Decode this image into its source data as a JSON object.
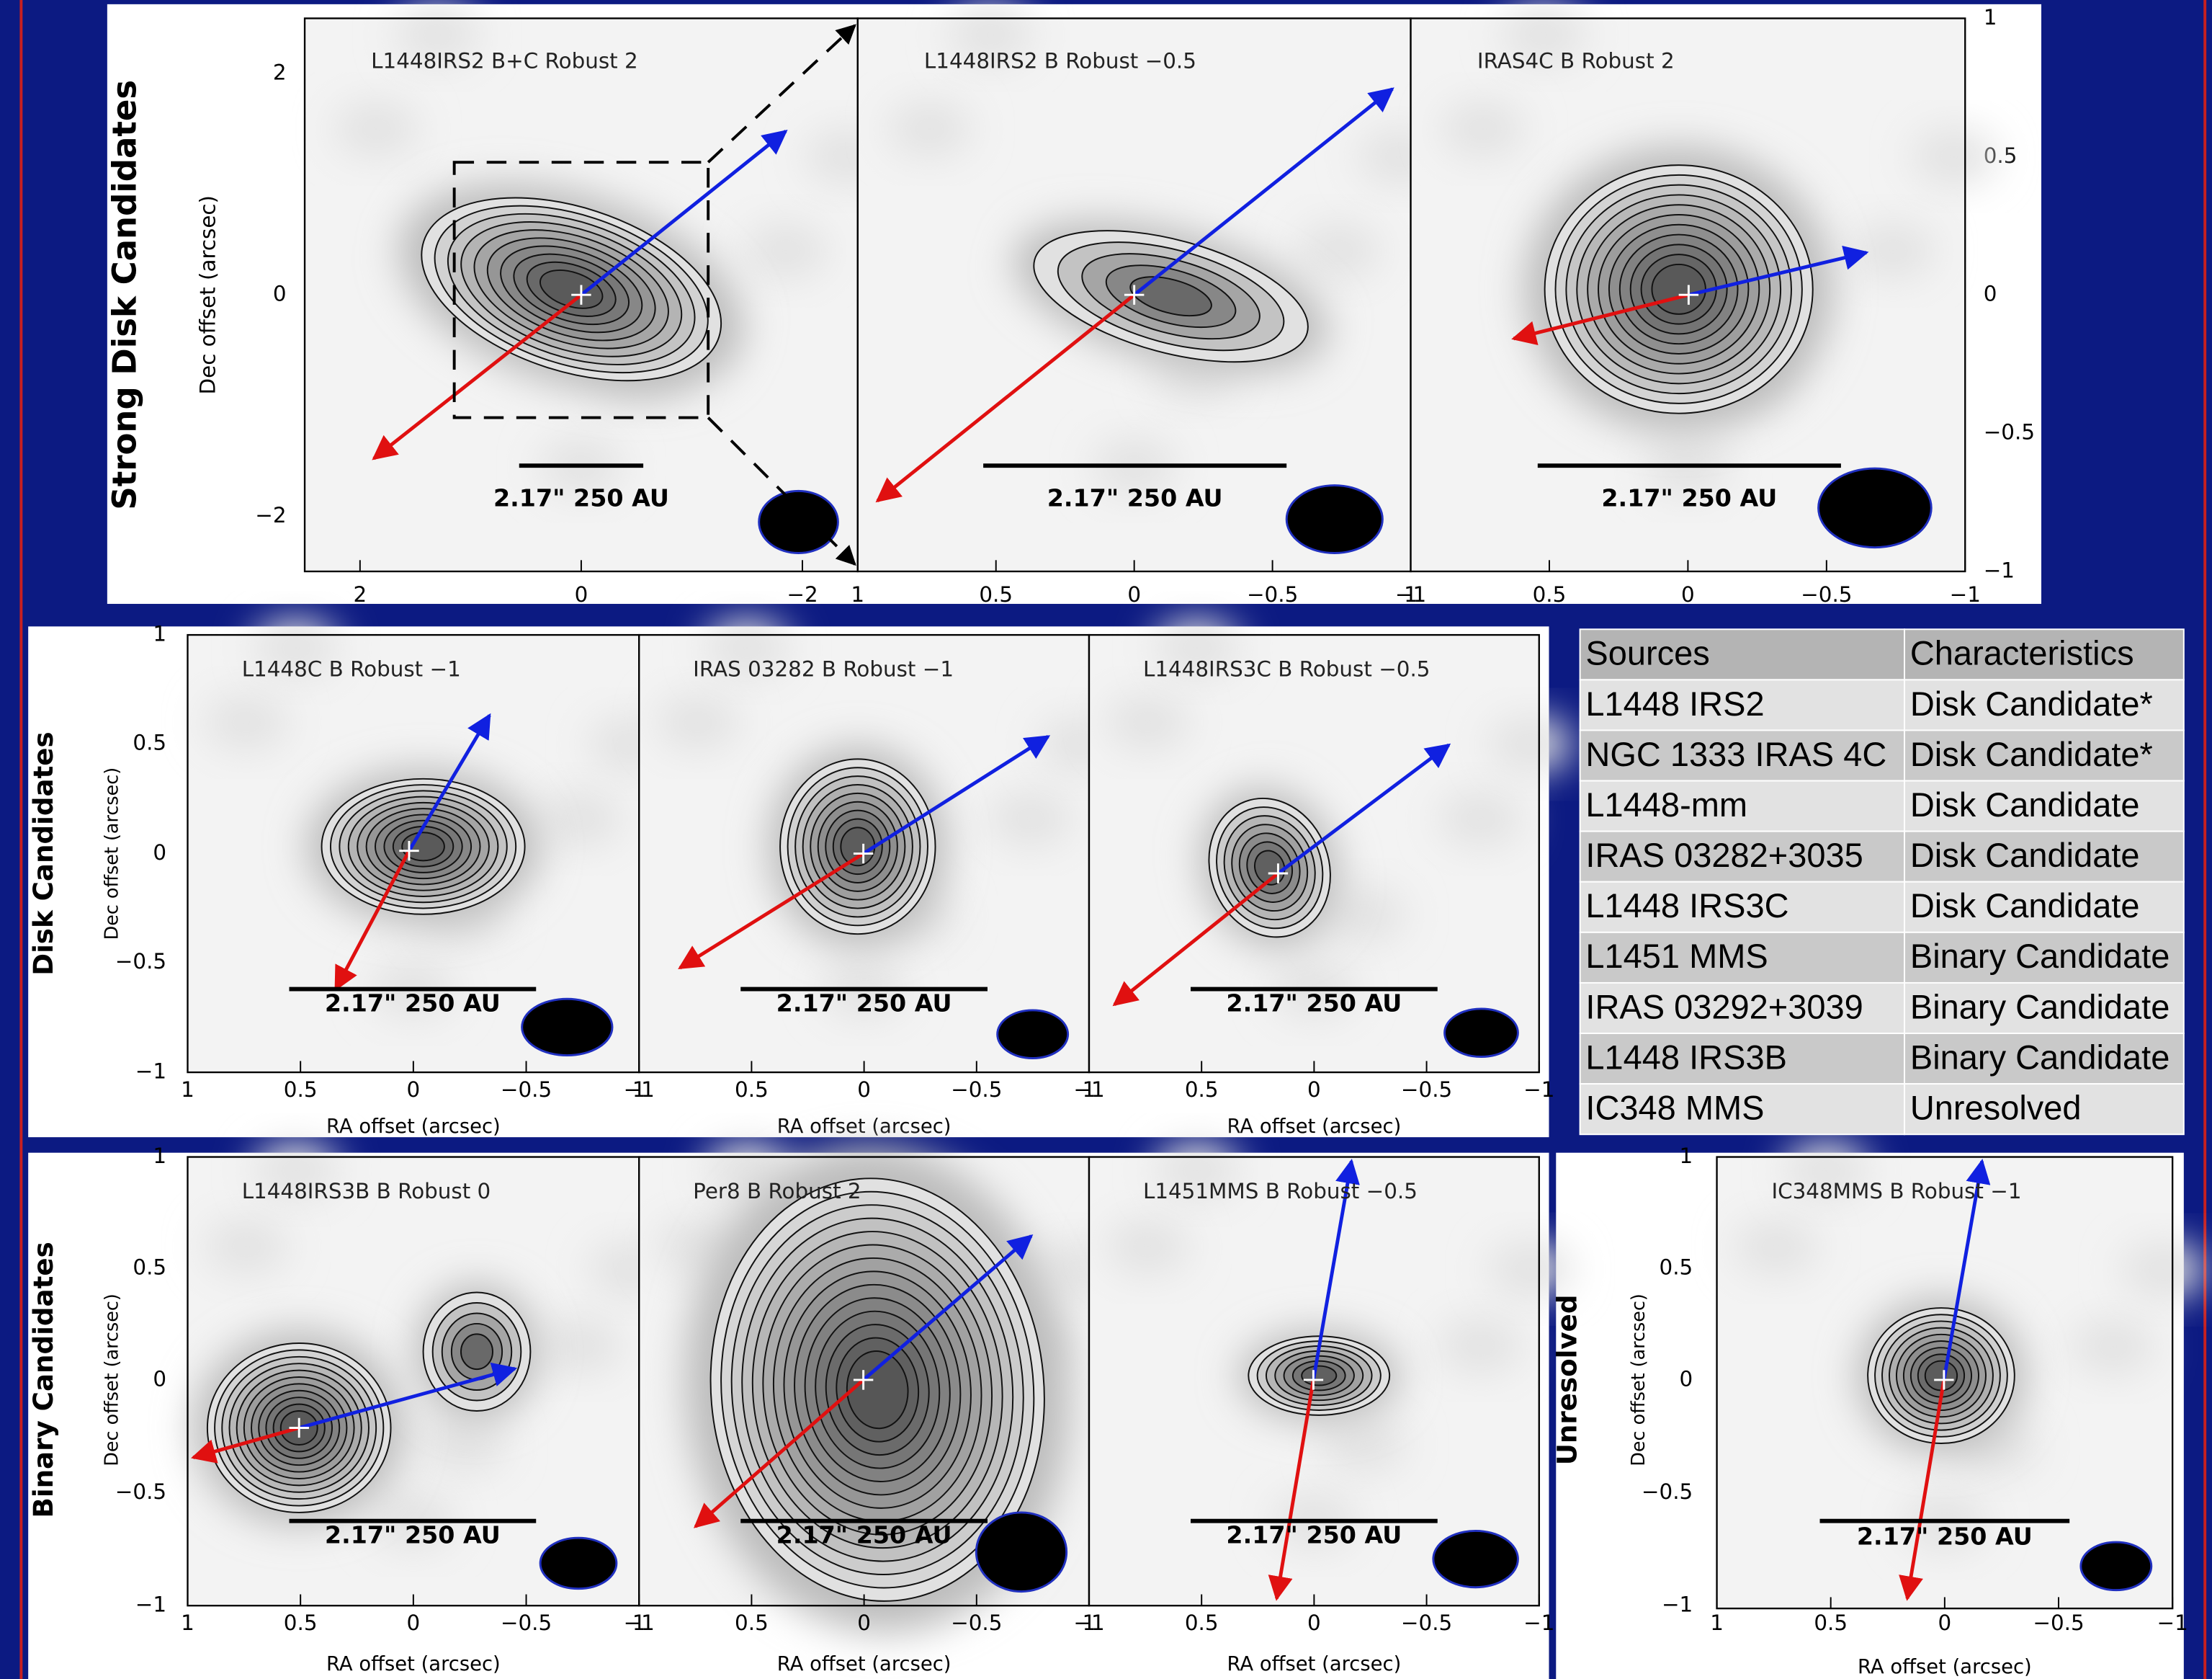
{
  "rows": [
    {
      "label": "Strong Disk Candidates",
      "ylabel": "Dec offset (arcsec)",
      "yticks": [
        "2",
        "0",
        "−2"
      ],
      "y2ticks": [
        "1",
        "0.5",
        "0",
        "−0.5",
        "−1"
      ],
      "panels": [
        {
          "title": "L1448IRS2 B+C Robust 2",
          "xticks": [
            "2",
            "0",
            "−2"
          ],
          "scalebar": "2.17\" 250 AU"
        },
        {
          "title": "L1448IRS2 B Robust −0.5",
          "xticks": [
            "1",
            "0.5",
            "0",
            "−0.5",
            "−1"
          ],
          "scalebar": "2.17\" 250 AU"
        },
        {
          "title": "IRAS4C B Robust 2",
          "xticks": [
            "1",
            "0.5",
            "0",
            "−0.5",
            "−1"
          ],
          "scalebar": "2.17\" 250 AU"
        }
      ]
    },
    {
      "label": "Disk Candidates",
      "ylabel": "Dec offset (arcsec)",
      "yticks": [
        "1",
        "0.5",
        "0",
        "−0.5",
        "−1"
      ],
      "panels": [
        {
          "title": "L1448C B Robust −1",
          "xticks": [
            "1",
            "0.5",
            "0",
            "−0.5",
            "−1"
          ],
          "xlabel": "RA offset (arcsec)",
          "scalebar": "2.17\" 250 AU"
        },
        {
          "title": "IRAS 03282 B Robust −1",
          "xticks": [
            "1",
            "0.5",
            "0",
            "−0.5",
            "−1"
          ],
          "xlabel": "RA offset (arcsec)",
          "scalebar": "2.17\" 250 AU"
        },
        {
          "title": "L1448IRS3C B Robust −0.5",
          "xticks": [
            "1",
            "0.5",
            "0",
            "−0.5",
            "−1"
          ],
          "xlabel": "RA offset (arcsec)",
          "scalebar": "2.17\" 250 AU"
        }
      ]
    },
    {
      "label": "Binary Candidates",
      "ylabel": "Dec offset (arcsec)",
      "yticks": [
        "1",
        "0.5",
        "0",
        "−0.5",
        "−1"
      ],
      "panels": [
        {
          "title": "L1448IRS3B B Robust 0",
          "xticks": [
            "1",
            "0.5",
            "0",
            "−0.5",
            "−1"
          ],
          "xlabel": "RA offset (arcsec)",
          "scalebar": "2.17\" 250 AU"
        },
        {
          "title": "Per8 B Robust 2",
          "xticks": [
            "1",
            "0.5",
            "0",
            "−0.5",
            "−1"
          ],
          "xlabel": "RA offset (arcsec)",
          "scalebar": "2.17\" 250 AU"
        },
        {
          "title": "L1451MMS B Robust −0.5",
          "xticks": [
            "1",
            "0.5",
            "0",
            "−0.5",
            "−1"
          ],
          "xlabel": "RA offset (arcsec)",
          "scalebar": "2.17\" 250 AU"
        }
      ]
    },
    {
      "label": "Unresolved",
      "ylabel": "Dec offset (arcsec)",
      "yticks": [
        "1",
        "0.5",
        "0",
        "−0.5",
        "−1"
      ],
      "panels": [
        {
          "title": "IC348MMS B Robust −1",
          "xticks": [
            "1",
            "0.5",
            "0",
            "−0.5",
            "−1"
          ],
          "xlabel": "RA offset (arcsec)",
          "scalebar": "2.17\" 250 AU"
        }
      ]
    }
  ],
  "table": {
    "header": [
      "Sources",
      "Characteristics"
    ],
    "rows": [
      [
        "L1448 IRS2",
        "Disk Candidate*"
      ],
      [
        "NGC 1333 IRAS 4C",
        "Disk Candidate*"
      ],
      [
        "L1448-mm",
        "Disk Candidate"
      ],
      [
        "IRAS 03282+3035",
        "Disk Candidate"
      ],
      [
        "L1448 IRS3C",
        "Disk Candidate"
      ],
      [
        "L1451 MMS",
        "Binary Candidate"
      ],
      [
        "IRAS 03292+3039",
        "Binary Candidate"
      ],
      [
        "L1448 IRS3B",
        "Binary Candidate"
      ],
      [
        "IC348 MMS",
        "Unresolved"
      ]
    ]
  }
}
